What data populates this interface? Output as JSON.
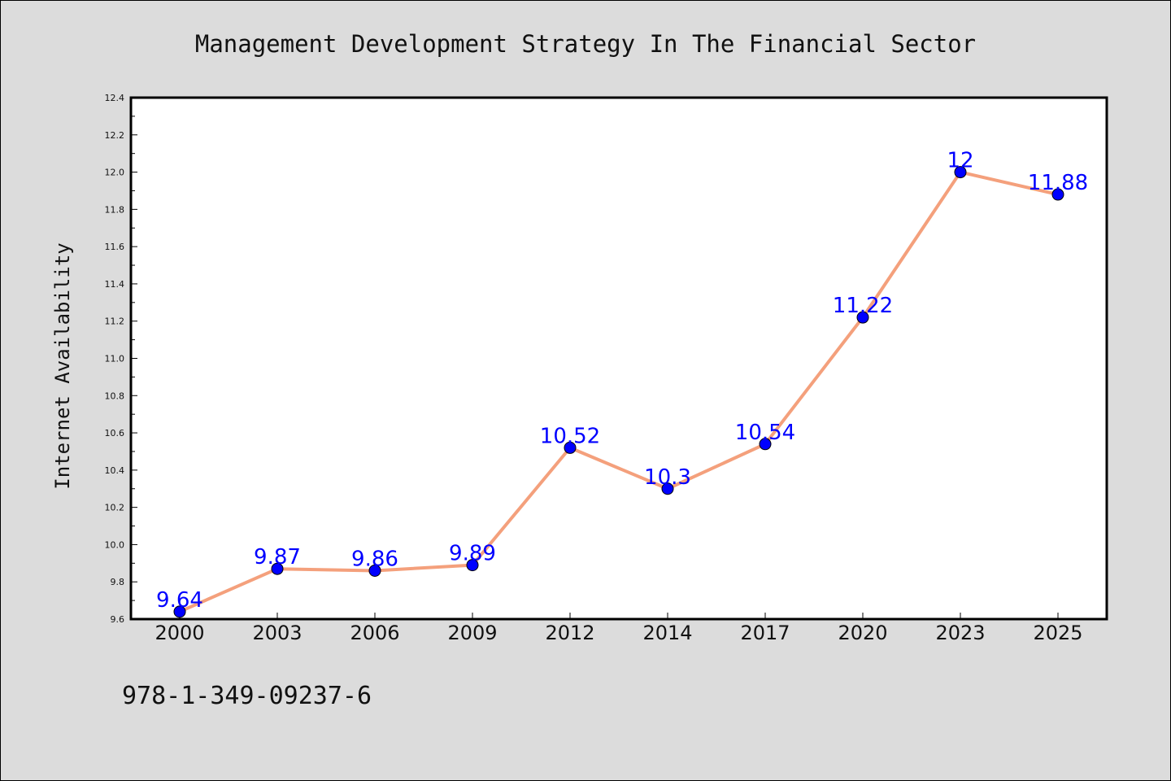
{
  "chart_data": {
    "type": "line",
    "title": "Management Development Strategy In The Financial Sector",
    "ylabel": "Internet Availability",
    "xlabel": "",
    "categories": [
      "2000",
      "2003",
      "2006",
      "2009",
      "2012",
      "2014",
      "2017",
      "2020",
      "2023",
      "2025"
    ],
    "series": [
      {
        "values": [
          9.64,
          9.87,
          9.86,
          9.89,
          10.52,
          10.3,
          10.54,
          11.22,
          12,
          11.88
        ],
        "labels": [
          "9.64",
          "9.87",
          "9.86",
          "9.89",
          "10.52",
          "10.3",
          "10.54",
          "11.22",
          "12",
          "11.88"
        ]
      }
    ],
    "ylim": [
      9.6,
      12.4
    ],
    "yticks": [
      "9.6",
      "9.8",
      "10.0",
      "10.2",
      "10.4",
      "10.6",
      "10.8",
      "11.0",
      "11.2",
      "11.4",
      "11.6",
      "11.8",
      "12.0",
      "12.2",
      "12.4"
    ],
    "grid": false,
    "colors": {
      "line": "#f4a07c",
      "marker": "#0000ff",
      "data_label": "#0000ff",
      "plot_background": "#ffffff",
      "page_background": "#dcdcdc"
    }
  },
  "footer": {
    "text": "978-1-349-09237-6"
  }
}
